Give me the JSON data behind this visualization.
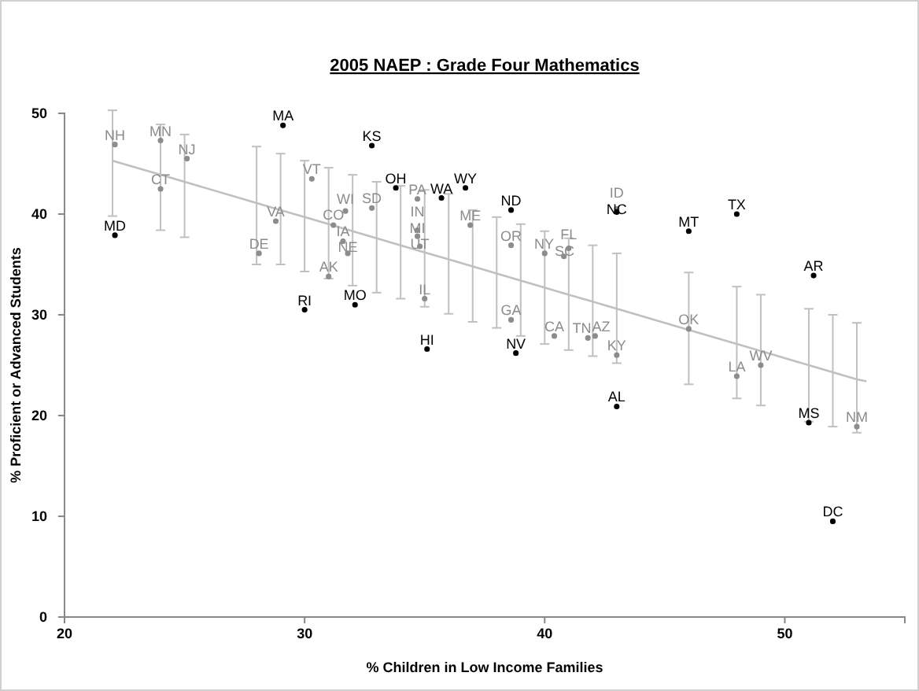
{
  "chart_data": {
    "type": "scatter",
    "title": "2005 NAEP : Grade Four Mathematics",
    "xlabel": "% Children in Low Income Families",
    "ylabel": "% Proficient or Advanced Students",
    "xlim": [
      20,
      55
    ],
    "xticks": [
      20,
      30,
      40,
      50
    ],
    "ylim": [
      0,
      50
    ],
    "yticks": [
      0,
      10,
      20,
      30,
      40,
      50
    ],
    "grid": false,
    "marker": "circle",
    "series": [
      {
        "type": "line",
        "color": "#c0c0c0",
        "marker": "none",
        "line_style": "solid",
        "x": [
          22,
          24,
          25,
          28,
          29,
          30,
          31,
          32,
          33,
          34,
          35,
          36,
          37,
          38,
          39,
          40,
          41,
          42,
          43,
          46,
          48,
          49,
          51,
          52,
          53,
          53.4
        ],
        "values": [
          45.3,
          43.9,
          43.2,
          41.1,
          40.4,
          39.7,
          39.0,
          38.3,
          37.6,
          36.9,
          36.2,
          35.5,
          34.8,
          34.1,
          33.4,
          32.7,
          32.0,
          31.3,
          30.6,
          28.5,
          27.1,
          26.4,
          25.0,
          24.3,
          23.6,
          23.4
        ],
        "errors": [
          [
            39.8,
            50.3
          ],
          [
            38.4,
            48.9
          ],
          [
            37.7,
            47.9
          ],
          [
            35.0,
            46.7
          ],
          [
            35.0,
            46.0
          ],
          [
            34.3,
            45.3
          ],
          [
            33.6,
            44.6
          ],
          [
            32.9,
            43.9
          ],
          [
            32.2,
            43.2
          ],
          [
            31.6,
            42.8
          ],
          [
            30.8,
            42.4
          ],
          [
            30.1,
            42.0
          ],
          [
            29.3,
            40.4
          ],
          [
            28.7,
            39.7
          ],
          [
            27.9,
            39.0
          ],
          [
            27.1,
            38.3
          ],
          [
            26.5,
            37.6
          ],
          [
            25.9,
            36.9
          ],
          [
            25.2,
            36.1
          ],
          [
            23.1,
            34.2
          ],
          [
            21.7,
            32.8
          ],
          [
            21.0,
            32.0
          ],
          [
            19.4,
            30.6
          ],
          [
            18.9,
            30.0
          ],
          [
            18.3,
            29.2
          ],
          null
        ]
      },
      {
        "color": "#8c8c8c",
        "x": [
          22.1,
          24.0,
          25.1,
          24.0,
          28.8,
          28.1,
          30.3,
          31.0,
          31.2,
          31.7,
          32.8,
          31.6,
          31.8,
          34.7,
          34.7,
          34.7,
          34.8,
          35.0,
          36.9,
          38.6,
          38.6,
          40.0,
          40.8,
          41.0,
          40.4,
          41.8,
          42.1,
          43.0,
          43.0,
          46.0,
          48.0,
          49.0,
          53.0
        ],
        "values": [
          46.9,
          47.3,
          45.5,
          42.5,
          39.3,
          36.1,
          43.5,
          33.8,
          38.9,
          40.3,
          40.6,
          37.3,
          36.1,
          41.5,
          38.4,
          37.8,
          36.8,
          31.6,
          38.9,
          36.9,
          29.5,
          36.1,
          35.8,
          36.6,
          27.9,
          27.7,
          27.9,
          26.0,
          40.5,
          28.6,
          23.9,
          25.0,
          18.9
        ],
        "value_labels": [
          "NH",
          "MN",
          "NJ",
          "CT",
          "VA",
          "DE",
          "VT",
          "AK",
          "CO",
          "WI",
          "SD",
          "IA",
          "NE",
          "PA",
          "IN",
          "MI",
          "UT",
          "IL",
          "ME",
          "OR",
          "GA",
          "NY",
          "SC",
          "FL",
          "CA",
          "TN",
          "AZ",
          "KY",
          "ID",
          "OK",
          "LA",
          "WV",
          "NM"
        ]
      },
      {
        "color": "#000000",
        "x": [
          22.1,
          29.1,
          30.0,
          32.8,
          32.1,
          33.8,
          35.7,
          36.7,
          35.1,
          38.6,
          38.8,
          43.0,
          46.0,
          48.0,
          51.2,
          51.0,
          43.0,
          52.0
        ],
        "values": [
          37.9,
          48.8,
          30.5,
          46.8,
          31.0,
          42.6,
          41.6,
          42.6,
          26.6,
          40.4,
          26.2,
          40.2,
          38.3,
          40.0,
          33.9,
          19.3,
          20.9,
          9.5
        ],
        "value_labels": [
          "MD",
          "MA",
          "RI",
          "KS",
          "MO",
          "OH",
          "WA",
          "WY",
          "HI",
          "ND",
          "NV",
          "NC",
          "MT",
          "TX",
          "AR",
          "MS",
          "AL",
          "DC"
        ]
      }
    ]
  }
}
